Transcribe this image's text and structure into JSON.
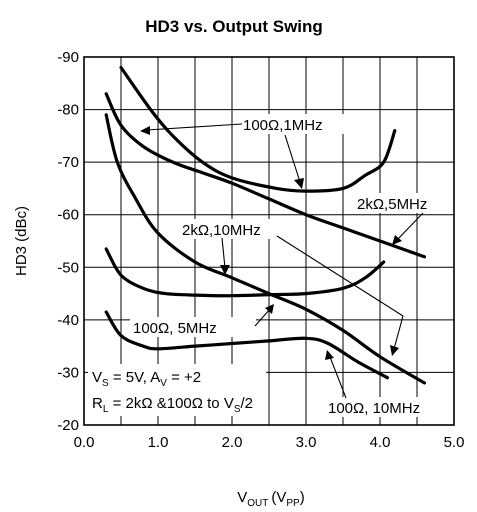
{
  "chart_data": {
    "type": "line",
    "title": "HD3 vs. Output Swing",
    "xlabel": {
      "main": "V",
      "main_sub": "OUT",
      "paren": "(V",
      "paren_sub": "PP",
      "close": ")"
    },
    "ylabel": "HD3 (dBc)",
    "xlim": [
      0,
      5.0
    ],
    "ylim": [
      -20,
      -90
    ],
    "grid": true,
    "x_ticks": [
      "0.0",
      "1.0",
      "2.0",
      "3.0",
      "4.0",
      "5.0"
    ],
    "x_tick_values": [
      0,
      1,
      2,
      3,
      4,
      5
    ],
    "y_ticks": [
      "-20",
      "-30",
      "-40",
      "-50",
      "-60",
      "-70",
      "-80",
      "-90"
    ],
    "y_tick_values": [
      -20,
      -30,
      -40,
      -50,
      -60,
      -70,
      -80,
      -90
    ],
    "series": [
      {
        "name": "100Ω,1MHz",
        "x": [
          0.5,
          0.9,
          1.2,
          1.6,
          2.0,
          2.6,
          3.0,
          3.5,
          3.8,
          4.05,
          4.2
        ],
        "y": [
          -88,
          -80,
          -75,
          -70,
          -67,
          -65,
          -64.5,
          -65,
          -67.5,
          -70,
          -76
        ]
      },
      {
        "name": "2kΩ,5MHz",
        "x": [
          0.3,
          0.5,
          0.8,
          1.2,
          1.6,
          2.0,
          2.5,
          3.0,
          3.5,
          4.0,
          4.6
        ],
        "y": [
          -83,
          -77,
          -73,
          -70,
          -68,
          -66,
          -63,
          -60,
          -57.5,
          -55,
          -52
        ]
      },
      {
        "name": "2kΩ,10MHz",
        "x": [
          0.3,
          0.45,
          0.7,
          1.0,
          1.5,
          2.0,
          2.5,
          3.0,
          3.5,
          4.0,
          4.6
        ],
        "y": [
          -79,
          -70,
          -63,
          -56.5,
          -51,
          -48,
          -45,
          -42,
          -38,
          -33,
          -28
        ]
      },
      {
        "name": "100Ω, 5MHz",
        "x": [
          0.3,
          0.5,
          0.8,
          1.1,
          1.5,
          2.0,
          2.5,
          3.0,
          3.5,
          3.8,
          4.05
        ],
        "y": [
          -53.5,
          -48.5,
          -46,
          -45,
          -44.7,
          -44.6,
          -44.8,
          -45,
          -46,
          -48,
          -51
        ]
      },
      {
        "name": "100Ω, 10MHz",
        "x": [
          0.3,
          0.5,
          0.8,
          1.0,
          1.5,
          2.0,
          2.5,
          3.0,
          3.3,
          3.7,
          4.1
        ],
        "y": [
          -41.5,
          -37,
          -35,
          -34.5,
          -35,
          -35.5,
          -36,
          -36.5,
          -35.5,
          -32,
          -29
        ]
      }
    ],
    "annotations": {
      "lab_100_1": "100Ω,1MHz",
      "lab_2k_5": "2kΩ,5MHz",
      "lab_2k_10": "2kΩ,10MHz",
      "lab_100_5": "100Ω, 5MHz",
      "lab_100_10": "100Ω, 10MHz",
      "cond1": {
        "a": "V",
        "a_sub": "S",
        "b": " = 5V, A",
        "b_sub": "V",
        "c": " = +2"
      },
      "cond2": {
        "a": "R",
        "a_sub": "L",
        "b": " = 2kΩ &100Ω to V",
        "b_sub": "S",
        "c": "/2"
      }
    }
  }
}
